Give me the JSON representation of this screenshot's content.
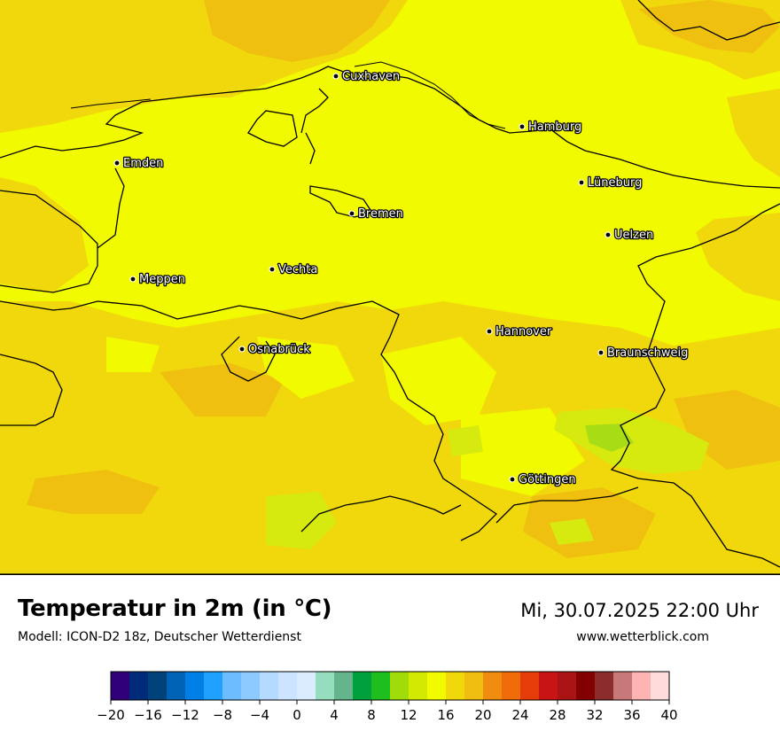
{
  "map": {
    "cities": [
      {
        "name": "Cuxhaven"
      },
      {
        "name": "Hamburg"
      },
      {
        "name": "Emden"
      },
      {
        "name": "Lüneburg"
      },
      {
        "name": "Bremen"
      },
      {
        "name": "Uelzen"
      },
      {
        "name": "Vechta"
      },
      {
        "name": "Meppen"
      },
      {
        "name": "Hannover"
      },
      {
        "name": "Osnabrück"
      },
      {
        "name": "Braunschweig"
      },
      {
        "name": "Göttingen"
      }
    ],
    "colors": {
      "dominant": "#f2fa00",
      "warmer": "#f0d80c",
      "warmest": "#f0c010",
      "cooler": "#d6ea10",
      "coolest": "#a8dc14",
      "borders": "#000000"
    }
  },
  "header": {
    "title": "Temperatur in 2m (in °C)",
    "subtitle": "Modell: ICON-D2 18z, Deutscher Wetterdienst",
    "datetime": "Mi, 30.07.2025 22:00 Uhr",
    "website": "www.wetterblick.com"
  },
  "legend": {
    "tick_labels": [
      "−20",
      "−16",
      "−12",
      "−8",
      "−4",
      "0",
      "4",
      "8",
      "12",
      "16",
      "20",
      "24",
      "28",
      "32",
      "36",
      "40"
    ],
    "colors": [
      "#30007a",
      "#002a7a",
      "#00427a",
      "#0062b4",
      "#0080e6",
      "#20a0ff",
      "#6cbcff",
      "#8ccaff",
      "#b4daff",
      "#cce4ff",
      "#dcecff",
      "#96dcbe",
      "#64b48c",
      "#00a03c",
      "#1ebe1e",
      "#a0dc0a",
      "#d2ea00",
      "#f2fa00",
      "#f0d80c",
      "#f0be10",
      "#f08c10",
      "#f06c0a",
      "#e63c0a",
      "#c81414",
      "#aa1414",
      "#820000",
      "#8c2d2d",
      "#c87878",
      "#ffb4b4",
      "#ffdcdc"
    ]
  }
}
